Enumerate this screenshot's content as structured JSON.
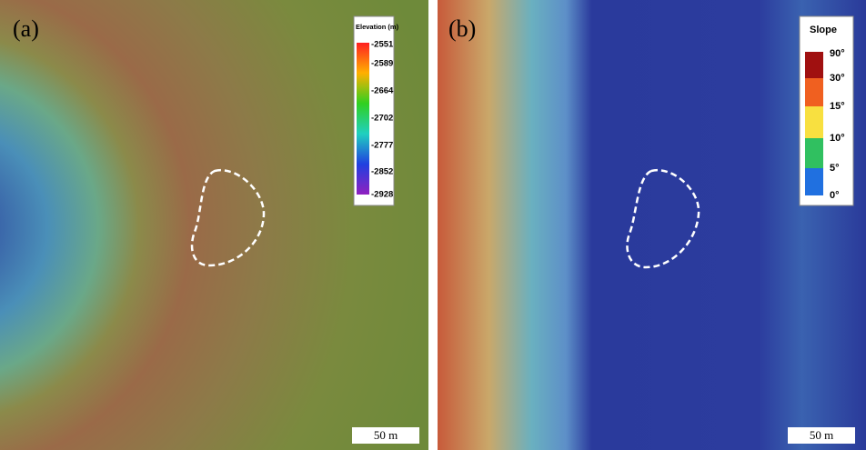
{
  "panels": [
    {
      "label": "(a)",
      "legend": {
        "title": "Elevation (m)",
        "ticks": [
          "-2551",
          "-2589",
          "-2664",
          "-2702",
          "-2777",
          "-2852",
          "-2928"
        ]
      },
      "scale_bar": "50 m"
    },
    {
      "label": "(b)",
      "legend": {
        "title": "Slope",
        "ticks": [
          "90°",
          "30°",
          "15°",
          "10°",
          "5°",
          "0°"
        ]
      },
      "scale_bar": "50 m"
    }
  ]
}
